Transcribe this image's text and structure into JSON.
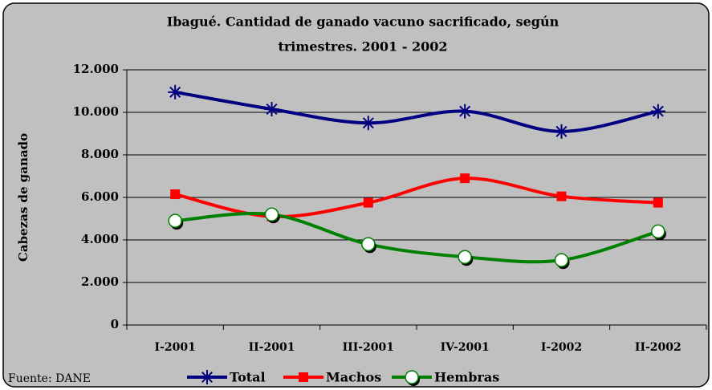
{
  "chart_data": {
    "type": "line",
    "title": "Ibagué. Cantidad de ganado vacuno sacrificado, según trimestres. 2001 - 2002",
    "title_lines": [
      "Ibagué. Cantidad de ganado vacuno sacrificado, según",
      "trimestres. 2001 - 2002"
    ],
    "y_label": "Cabezas de ganado",
    "source": "Fuente: DANE",
    "categories": [
      "I-2001",
      "II-2001",
      "III-2001",
      "IV-2001",
      "I-2002",
      "II-2002"
    ],
    "series": [
      {
        "name": "Total",
        "color": "#000080",
        "marker": "asterisk",
        "values": [
          10950,
          10150,
          9500,
          10050,
          9100,
          10050
        ]
      },
      {
        "name": "Machos",
        "color": "#ff0000",
        "marker": "square",
        "values": [
          6150,
          5100,
          5750,
          6900,
          6050,
          5750
        ]
      },
      {
        "name": "Hembras",
        "color": "#008000",
        "marker": "circle",
        "values": [
          4900,
          5200,
          3800,
          3200,
          3050,
          4400
        ]
      }
    ],
    "ylim": [
      0,
      12000
    ],
    "yticks": [
      0,
      {
        "value": 2000,
        "label": "2.000"
      },
      {
        "value": 4000,
        "label": "4.000"
      },
      {
        "value": 6000,
        "label": "6.000"
      },
      {
        "value": 8000,
        "label": "8.000"
      },
      {
        "value": 10000,
        "label": "10.000"
      },
      {
        "value": 12000,
        "label": "12.000"
      }
    ],
    "grid": true,
    "legend": "bottom"
  }
}
